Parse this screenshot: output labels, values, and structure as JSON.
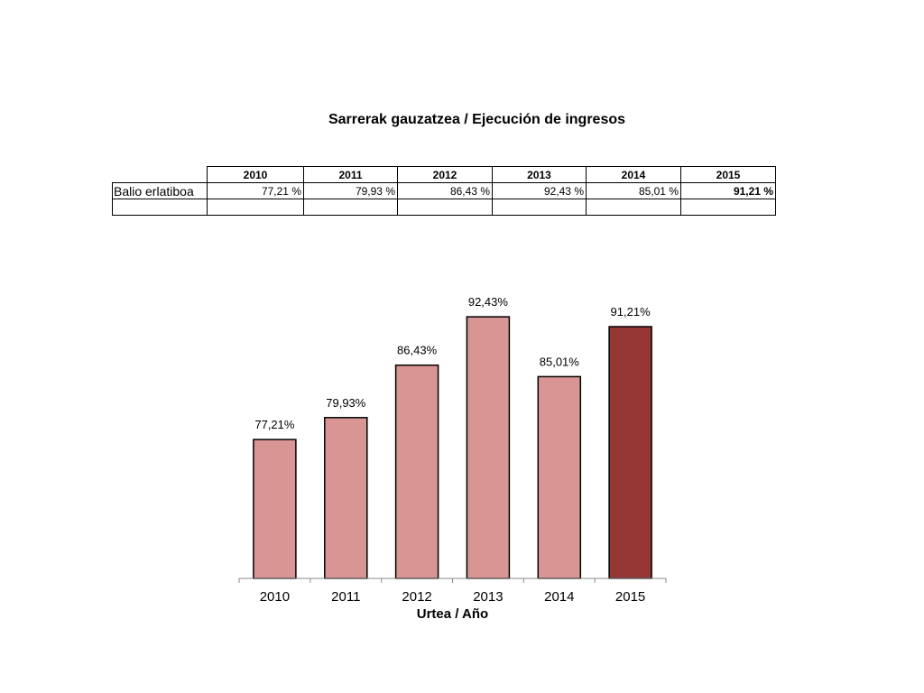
{
  "title": "Sarrerak gauzatzea / Ejecución de ingresos",
  "table": {
    "years": [
      "2010",
      "2011",
      "2012",
      "2013",
      "2014",
      "2015"
    ],
    "row_label": "Balio erlatiboa",
    "values": [
      "77,21 %",
      "79,93 %",
      "86,43 %",
      "92,43 %",
      "85,01 %",
      "91,21 %"
    ]
  },
  "chart_data": {
    "type": "bar",
    "categories": [
      "2010",
      "2011",
      "2012",
      "2013",
      "2014",
      "2015"
    ],
    "values": [
      77.21,
      79.93,
      86.43,
      92.43,
      85.01,
      91.21
    ],
    "data_labels": [
      "77,21%",
      "79,93%",
      "86,43%",
      "92,43%",
      "85,01%",
      "91,21%"
    ],
    "title": "",
    "xlabel": "Urtea / Año",
    "ylabel": "",
    "ylim": [
      60,
      95
    ],
    "grid": false,
    "legend": "none",
    "colors": {
      "default_bar": "#D99594",
      "highlight_bar": "#953735",
      "bar_outline": "#000000"
    },
    "highlight_category": "2015"
  }
}
